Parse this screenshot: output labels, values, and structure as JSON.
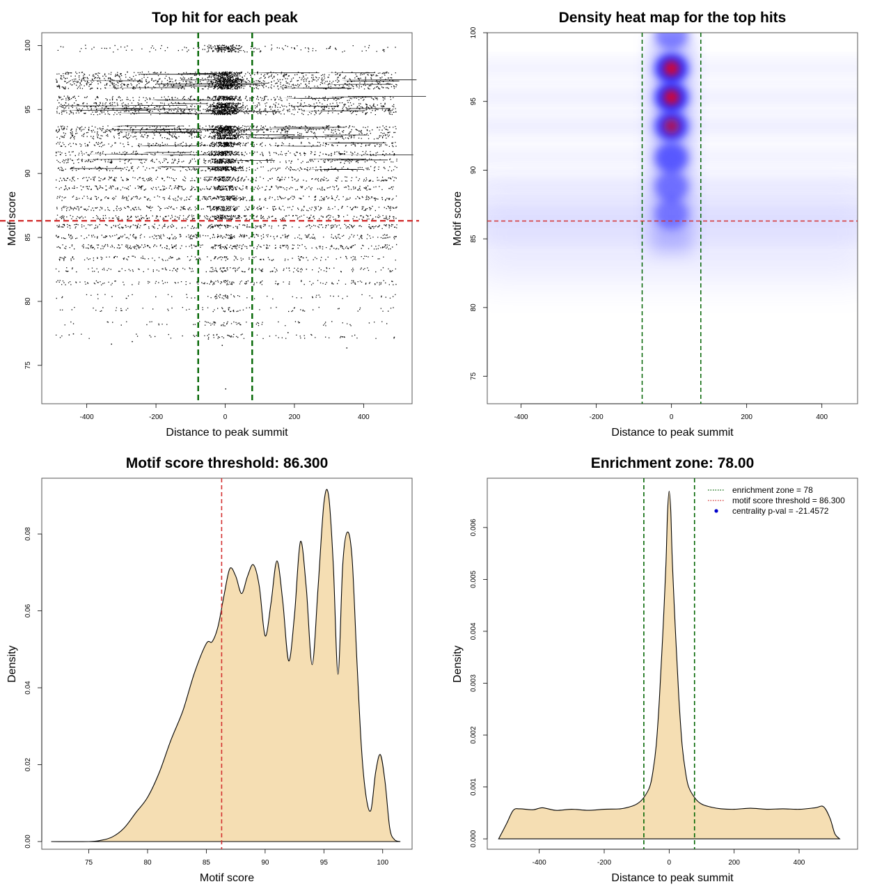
{
  "chart_data": [
    {
      "id": "scatter",
      "type": "scatter",
      "title": "Top hit for each peak",
      "xlabel": "Distance to peak summit",
      "ylabel": "Motif score",
      "xlim": [
        -530,
        540
      ],
      "ylim": [
        72,
        101
      ],
      "xticks": [
        -400,
        -200,
        0,
        200,
        400
      ],
      "yticks": [
        75,
        80,
        85,
        90,
        95,
        100
      ],
      "enrichment_zone": [
        -78,
        78
      ],
      "threshold": 86.3,
      "x_range": [
        -490,
        495
      ],
      "score_levels": [
        99.9,
        99.7,
        97.8,
        97.4,
        97.1,
        96.8,
        95.9,
        95.4,
        95.1,
        94.8,
        93.6,
        93.3,
        92.9,
        92.3,
        91.6,
        91.0,
        90.4,
        89.6,
        88.9,
        88.1,
        87.3,
        86.6,
        85.9,
        85.1,
        84.3,
        83.4,
        82.5,
        81.5,
        80.4,
        79.4,
        78.3,
        77.3
      ],
      "outliers": [
        [
          -330,
          76.7
        ],
        [
          -270,
          76.9
        ],
        [
          -50,
          77.1
        ],
        [
          0,
          73.2
        ],
        [
          -10,
          76.6
        ],
        [
          350,
          76.4
        ],
        [
          -440,
          77.5
        ],
        [
          180,
          77.6
        ],
        [
          -90,
          77.3
        ]
      ]
    },
    {
      "id": "heat",
      "type": "heatmap",
      "title": "Density heat map for the top hits",
      "xlabel": "Distance to peak summit",
      "ylabel": "Motif score",
      "xlim": [
        -490,
        495
      ],
      "ylim": [
        73,
        100
      ],
      "xticks": [
        -400,
        -200,
        0,
        200,
        400
      ],
      "yticks": [
        75,
        80,
        85,
        90,
        95,
        100
      ],
      "enrichment_zone": [
        -78,
        78
      ],
      "threshold": 86.3,
      "hotspots": [
        [
          0,
          97.4,
          1.0
        ],
        [
          0,
          95.3,
          1.0
        ],
        [
          0,
          93.2,
          0.85
        ],
        [
          0,
          90.9,
          0.6
        ],
        [
          0,
          88.8,
          0.35
        ],
        [
          0,
          86.8,
          0.25
        ],
        [
          0,
          99.9,
          0.35
        ]
      ],
      "bands": [
        97.4,
        95.3,
        93.2,
        91.0,
        88.9,
        87.0,
        85.5
      ]
    },
    {
      "id": "score",
      "type": "area",
      "title": "Motif score threshold: 86.300",
      "xlabel": "Motif score",
      "ylabel": "Density",
      "xlim": [
        71,
        102.5
      ],
      "ylim": [
        -0.002,
        0.0945
      ],
      "xticks": [
        75,
        80,
        85,
        90,
        95,
        100
      ],
      "yticks": [
        0.0,
        0.02,
        0.04,
        0.06,
        0.08
      ],
      "ytick_labels": [
        "0.00",
        "0.02",
        "0.04",
        "0.06",
        "0.08"
      ],
      "threshold": 86.3,
      "x": [
        71.8,
        75,
        76,
        77,
        78,
        79,
        80,
        81,
        82,
        83,
        84,
        85,
        85.5,
        86,
        86.5,
        87,
        87.5,
        88,
        88.5,
        89,
        89.5,
        90,
        90.5,
        91,
        91.5,
        92,
        92.5,
        93,
        93.5,
        94,
        94.5,
        95,
        95.4,
        95.8,
        96.2,
        96.6,
        97,
        97.4,
        97.8,
        98.2,
        98.6,
        99,
        99.4,
        99.8,
        100.2,
        100.6,
        101,
        101.5
      ],
      "y": [
        0.0,
        0.0,
        0.0003,
        0.0012,
        0.0035,
        0.0075,
        0.0115,
        0.018,
        0.0265,
        0.034,
        0.044,
        0.0515,
        0.052,
        0.056,
        0.064,
        0.071,
        0.069,
        0.0645,
        0.069,
        0.072,
        0.0665,
        0.0535,
        0.062,
        0.073,
        0.0625,
        0.047,
        0.059,
        0.078,
        0.066,
        0.046,
        0.066,
        0.088,
        0.09,
        0.072,
        0.0435,
        0.072,
        0.0805,
        0.0735,
        0.0475,
        0.024,
        0.0115,
        0.0082,
        0.018,
        0.0226,
        0.0155,
        0.0035,
        0.0005,
        0.0
      ]
    },
    {
      "id": "dist",
      "type": "area",
      "title": "Enrichment zone: 78.00",
      "xlabel": "Distance to peak summit",
      "ylabel": "Density",
      "xlim": [
        -560,
        580
      ],
      "ylim": [
        -0.0002,
        0.00695
      ],
      "xticks": [
        -400,
        -200,
        0,
        200,
        400
      ],
      "yticks": [
        0.0,
        0.001,
        0.002,
        0.003,
        0.004,
        0.005,
        0.006
      ],
      "ytick_labels": [
        "0.000",
        "0.001",
        "0.002",
        "0.003",
        "0.004",
        "0.005",
        "0.006"
      ],
      "enrichment_zone": [
        -78,
        78
      ],
      "x": [
        -525,
        -500,
        -480,
        -460,
        -420,
        -390,
        -350,
        -300,
        -250,
        -200,
        -150,
        -120,
        -100,
        -80,
        -60,
        -50,
        -40,
        -30,
        -20,
        -10,
        -5,
        0,
        5,
        10,
        20,
        30,
        40,
        50,
        60,
        80,
        100,
        130,
        160,
        200,
        250,
        300,
        350,
        400,
        450,
        475,
        495,
        510,
        525
      ],
      "y": [
        0.0,
        0.0003,
        0.00055,
        0.00058,
        0.00056,
        0.0006,
        0.00055,
        0.00057,
        0.00055,
        0.00057,
        0.00058,
        0.00062,
        0.00067,
        0.00078,
        0.001,
        0.0013,
        0.0018,
        0.0027,
        0.0039,
        0.0053,
        0.0063,
        0.0067,
        0.0063,
        0.0053,
        0.0039,
        0.0027,
        0.0018,
        0.0013,
        0.001,
        0.00078,
        0.00067,
        0.00061,
        0.00058,
        0.00057,
        0.00059,
        0.00057,
        0.00058,
        0.00057,
        0.0006,
        0.00062,
        0.0004,
        0.0001,
        0.0
      ],
      "legend": [
        {
          "label": "enrichment zone = 78",
          "color": "#006400",
          "style": "dotted"
        },
        {
          "label": "motif score threshold = 86.300",
          "color": "#d32f2f",
          "style": "dotted"
        },
        {
          "label": "centrality p-val = -21.4572",
          "color": "#0000cc",
          "style": "point"
        }
      ]
    }
  ]
}
